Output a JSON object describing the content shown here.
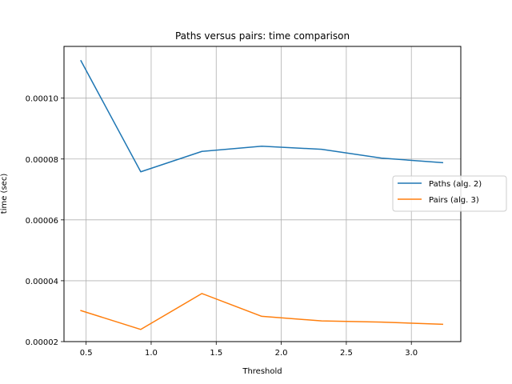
{
  "chart_data": {
    "type": "line",
    "title": "Paths versus pairs: time comparison",
    "xlabel": "Threshold",
    "ylabel": "time (sec)",
    "xlim": [
      0.33,
      3.38
    ],
    "ylim": [
      2e-05,
      0.000117
    ],
    "xticks": [
      0.5,
      1.0,
      1.5,
      2.0,
      2.5,
      3.0
    ],
    "xtick_labels": [
      "0.5",
      "1.0",
      "1.5",
      "2.0",
      "2.5",
      "3.0"
    ],
    "yticks": [
      2e-05,
      4e-05,
      6e-05,
      8e-05,
      0.0001
    ],
    "ytick_labels": [
      "0.00002",
      "0.00004",
      "0.00006",
      "0.00008",
      "0.00010"
    ],
    "grid": true,
    "legend_position": "center-right",
    "x": [
      0.46,
      0.92,
      1.39,
      1.85,
      2.31,
      2.77,
      3.24
    ],
    "series": [
      {
        "name": "Paths (alg. 2)",
        "color": "#1f77b4",
        "values": [
          0.0001123,
          7.58e-05,
          8.25e-05,
          8.42e-05,
          8.32e-05,
          8.03e-05,
          7.88e-05
        ]
      },
      {
        "name": "Pairs (alg. 3)",
        "color": "#ff7f0e",
        "values": [
          3.02e-05,
          2.4e-05,
          3.58e-05,
          2.83e-05,
          2.68e-05,
          2.64e-05,
          2.57e-05
        ]
      }
    ]
  }
}
